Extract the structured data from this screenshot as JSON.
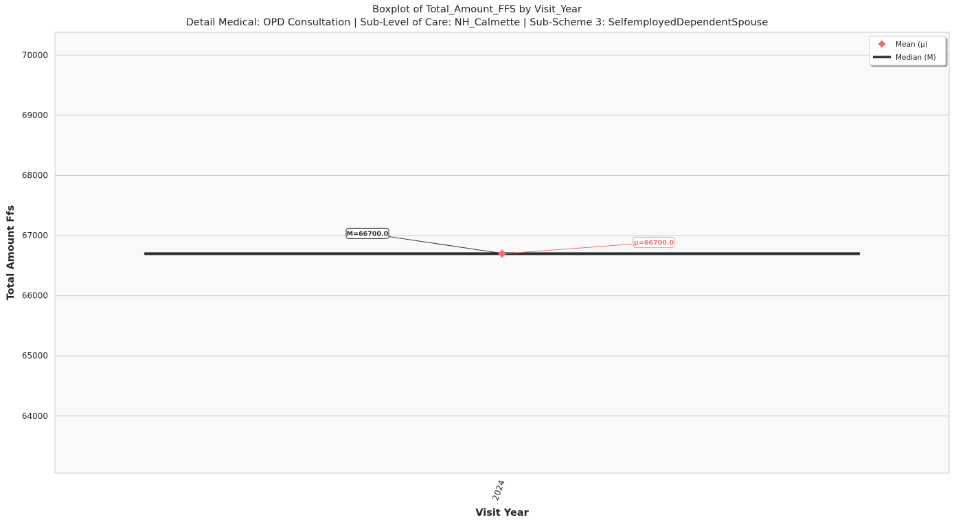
{
  "chart_data": {
    "type": "box",
    "title": "Boxplot of Total_Amount_FFS by Visit_Year",
    "subtitle": "Detail Medical: OPD Consultation | Sub-Level of Care: NH_Calmette | Sub-Scheme 3: SelfemployedDependentSpouse",
    "xlabel": "Visit Year",
    "ylabel": "Total Amount Ffs",
    "categories": [
      "2024"
    ],
    "ylim": [
      63050,
      70380
    ],
    "yticks": [
      64000,
      65000,
      66000,
      67000,
      68000,
      69000,
      70000
    ],
    "grid": true,
    "legend_position": "top-right",
    "legend": [
      {
        "label": "Mean (μ)",
        "marker": "diamond",
        "color": "#f46d6d"
      },
      {
        "label": "Median (M)",
        "marker": "line",
        "color": "#2b2f2f"
      }
    ],
    "series": [
      {
        "category": "2024",
        "min": 66700.0,
        "q1": 66700.0,
        "median": 66700.0,
        "q3": 66700.0,
        "max": 66700.0,
        "mean": 66700.0
      }
    ],
    "annotations": {
      "median_label": "M=66700.0",
      "mean_label": "μ=66700.0"
    },
    "colors": {
      "median": "#2b2f2f",
      "mean": "#f46d6d",
      "plot_bg": "#f9f9f9",
      "grid": "#cccccc"
    }
  }
}
